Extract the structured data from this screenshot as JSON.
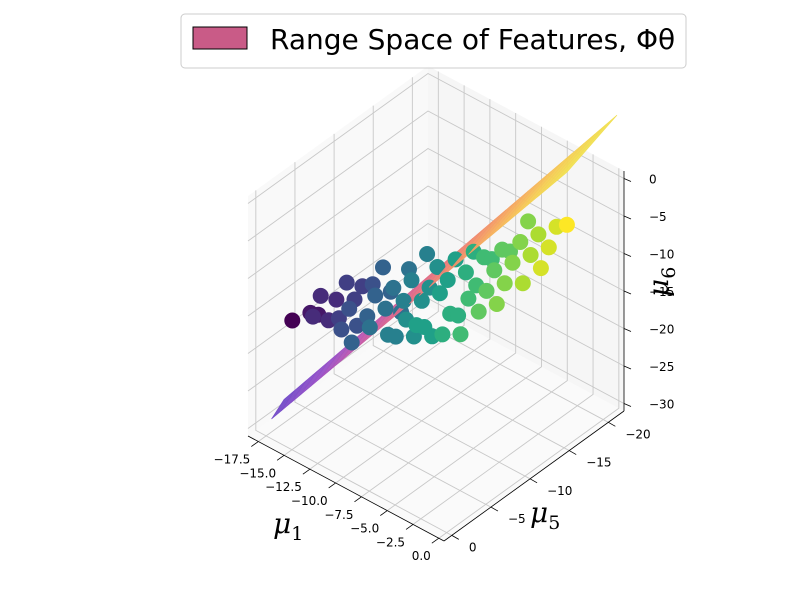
{
  "chart_data": {
    "type": "scatter",
    "projection": "3d",
    "legend": {
      "label": "Range Space of Features, Φθ",
      "color": "#c95b87",
      "placement": "top-right"
    },
    "axes": {
      "x": {
        "symbol": "μ",
        "subscript": "1",
        "ticks": [
          "−17.5",
          "−15.0",
          "−12.5",
          "−10.0",
          "−7.5",
          "−5.0",
          "−2.5",
          "0.0"
        ],
        "range": [
          -18.5,
          0.5
        ]
      },
      "y": {
        "symbol": "μ",
        "subscript": "5",
        "ticks": [
          "0",
          "−5",
          "−10",
          "−15",
          "−20"
        ],
        "range": [
          -22,
          1
        ]
      },
      "z": {
        "symbol": "μ",
        "subscript": "6",
        "ticks": [
          "0",
          "−5",
          "−10",
          "−15",
          "−20",
          "−25",
          "−30"
        ],
        "range": [
          -31,
          1
        ]
      }
    },
    "grid": true,
    "colormap": "viridis",
    "surface": {
      "type": "plane",
      "colormap": "plasma",
      "from": [
        -18.5,
        -2,
        -31
      ],
      "to": [
        -2,
        -18,
        2
      ]
    },
    "points": [
      {
        "x": -18,
        "y": -4,
        "z": -19
      },
      {
        "x": -17,
        "y": -5,
        "z": -18
      },
      {
        "x": -16,
        "y": -4,
        "z": -17
      },
      {
        "x": -17,
        "y": -6,
        "z": -19
      },
      {
        "x": -15,
        "y": -6,
        "z": -18
      },
      {
        "x": -16,
        "y": -7,
        "z": -17
      },
      {
        "x": -16,
        "y": -5,
        "z": -15
      },
      {
        "x": -14,
        "y": -6,
        "z": -16
      },
      {
        "x": -15,
        "y": -8,
        "z": -17
      },
      {
        "x": -14,
        "y": -5,
        "z": -18
      },
      {
        "x": -13,
        "y": -7,
        "z": -17
      },
      {
        "x": -15,
        "y": -7,
        "z": -14
      },
      {
        "x": -14,
        "y": -9,
        "z": -15
      },
      {
        "x": -13,
        "y": -8,
        "z": -15
      },
      {
        "x": -12,
        "y": -6,
        "z": -17
      },
      {
        "x": -13,
        "y": -5,
        "z": -19
      },
      {
        "x": -12,
        "y": -8,
        "z": -16
      },
      {
        "x": -11,
        "y": -7,
        "z": -18
      },
      {
        "x": -12,
        "y": -9,
        "z": -14
      },
      {
        "x": -13,
        "y": -10,
        "z": -16
      },
      {
        "x": -11,
        "y": -9,
        "z": -15
      },
      {
        "x": -11,
        "y": -10,
        "z": -13
      },
      {
        "x": -10,
        "y": -8,
        "z": -16
      },
      {
        "x": -10,
        "y": -10,
        "z": -15
      },
      {
        "x": -12,
        "y": -11,
        "z": -13
      },
      {
        "x": -10,
        "y": -11,
        "z": -14
      },
      {
        "x": -11,
        "y": -8,
        "z": -19
      },
      {
        "x": -9,
        "y": -9,
        "z": -17
      },
      {
        "x": -9,
        "y": -11,
        "z": -14
      },
      {
        "x": -10,
        "y": -12,
        "z": -12
      },
      {
        "x": -9,
        "y": -12,
        "z": -13
      },
      {
        "x": -8,
        "y": -11,
        "z": -16
      },
      {
        "x": -8,
        "y": -13,
        "z": -12
      },
      {
        "x": -8,
        "y": -10,
        "z": -18
      },
      {
        "x": -9,
        "y": -13,
        "z": -11
      },
      {
        "x": -7,
        "y": -12,
        "z": -14
      },
      {
        "x": -7,
        "y": -13,
        "z": -13
      },
      {
        "x": -7,
        "y": -14,
        "z": -10
      },
      {
        "x": -6,
        "y": -13,
        "z": -13
      },
      {
        "x": -8,
        "y": -14,
        "z": -10
      },
      {
        "x": -6,
        "y": -14,
        "z": -11
      },
      {
        "x": -6,
        "y": -15,
        "z": -9
      },
      {
        "x": -5,
        "y": -14,
        "z": -12
      },
      {
        "x": -5,
        "y": -15,
        "z": -10
      },
      {
        "x": -5,
        "y": -16,
        "z": -8
      },
      {
        "x": -7,
        "y": -15,
        "z": -11
      },
      {
        "x": -6,
        "y": -16,
        "z": -10
      },
      {
        "x": -4,
        "y": -16,
        "z": -9
      },
      {
        "x": -4,
        "y": -17,
        "z": -7
      },
      {
        "x": -5,
        "y": -17,
        "z": -6
      },
      {
        "x": -3,
        "y": -17,
        "z": -8
      },
      {
        "x": -4,
        "y": -15,
        "z": -12
      },
      {
        "x": -3,
        "y": -18,
        "z": -6
      },
      {
        "x": -2,
        "y": -18,
        "z": -5
      },
      {
        "x": -8,
        "y": -12,
        "z": -17
      },
      {
        "x": -10,
        "y": -9,
        "z": -19
      },
      {
        "x": -9,
        "y": -10,
        "z": -19
      },
      {
        "x": -7,
        "y": -11,
        "z": -18
      },
      {
        "x": -11,
        "y": -12,
        "z": -11
      },
      {
        "x": -6,
        "y": -12,
        "z": -15
      },
      {
        "x": -5,
        "y": -13,
        "z": -14
      },
      {
        "x": -3,
        "y": -16,
        "z": -10
      },
      {
        "x": -14,
        "y": -7,
        "z": -19
      },
      {
        "x": -12,
        "y": -10,
        "z": -18
      },
      {
        "x": -9,
        "y": -8,
        "z": -16
      },
      {
        "x": -13,
        "y": -9,
        "z": -12
      },
      {
        "x": -15,
        "y": -9,
        "z": -16
      },
      {
        "x": -16,
        "y": -6,
        "z": -19
      }
    ]
  }
}
